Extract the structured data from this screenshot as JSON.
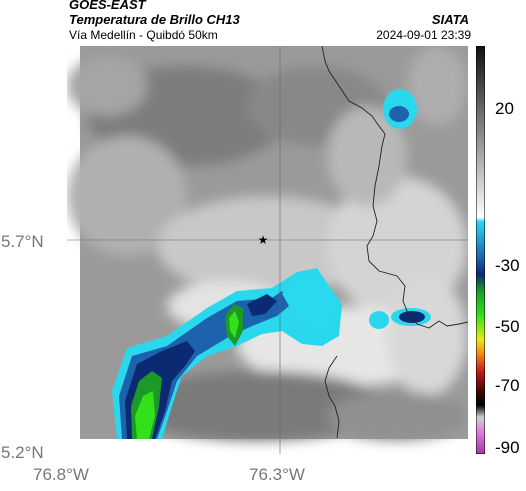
{
  "header": {
    "satellite": "GOES-EAST",
    "product": "Temperatura de Brillo CH13",
    "source": "SIATA",
    "route": "Vía Medellín - Quibdó 50km",
    "datetime": "2024-09-01 23:39"
  },
  "map": {
    "y_axis_labels": [
      "5.7°N",
      "5.2°N"
    ],
    "x_axis_labels": [
      "76.8°W",
      "76.3°W"
    ],
    "marker": "★"
  },
  "colorbar": {
    "tick_labels": [
      "20",
      "-30",
      "-50",
      "-70",
      "-90"
    ]
  },
  "colors": {
    "cold_green": "#33e11a",
    "cyan": "#2ad8ee",
    "blue": "#1d62ac",
    "navy": "#0c2a72",
    "gray_dark": "#6d6d6d",
    "gray_light": "#e8e8e8"
  }
}
